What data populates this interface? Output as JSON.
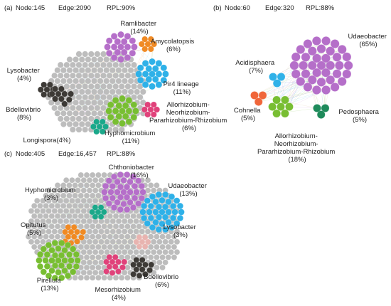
{
  "panels": [
    {
      "id": "a",
      "header": {
        "tag": "(a)",
        "node": "Node:145",
        "edge": "Edge:2090",
        "rpl": "RPL:90%"
      },
      "gray": "#bdbdbd",
      "modules": [
        {
          "name": "Ramlibacter",
          "pct": "(14%)",
          "color": "#b56fc9"
        },
        {
          "name": "Amycolatopsis",
          "pct": "(6%)",
          "color": "#f08a24"
        },
        {
          "name": "Pir4 lineage",
          "pct": "(11%)",
          "color": "#2fb1e8"
        },
        {
          "name": "Lysobacter",
          "pct": "(4%)",
          "color": "#3d3a36"
        },
        {
          "name": "Bdellovibrio",
          "pct": "(8%)",
          "color": "#3d3a36"
        },
        {
          "name": "Allorhizobium-\nNeorhizobium-\nPararhizobium-Rhizobium",
          "pct": "(6%)",
          "color": "#e0427a"
        },
        {
          "name": "Hyphomicrobium",
          "pct": "(11%)",
          "color": "#78be32"
        },
        {
          "name": "Longispora",
          "pct": "(4%)",
          "color": "#1ba88a"
        }
      ]
    },
    {
      "id": "b",
      "header": {
        "tag": "(b)",
        "node": "Node:60",
        "edge": "Edge:320",
        "rpl": "RPL:88%"
      },
      "modules": [
        {
          "name": "Udaeobacter",
          "pct": "(65%)",
          "color": "#b56fc9"
        },
        {
          "name": "Acidisphaera",
          "pct": "(7%)",
          "color": "#2fb1e8"
        },
        {
          "name": "Cohnella",
          "pct": "(5%)",
          "color": "#f0663a"
        },
        {
          "name": "Allorhizobium-\nNeorhizobium-\nPararhizobium-Rhizobium",
          "pct": "(18%)",
          "color": "#78be32"
        },
        {
          "name": "Pedosphaera",
          "pct": "(5%)",
          "color": "#1e8a5a"
        }
      ]
    },
    {
      "id": "c",
      "header": {
        "tag": "(c)",
        "node": "Node:405",
        "edge": "Edge:16,457",
        "rpl": "RPL:88%"
      },
      "gray": "#bdbdbd",
      "modules": [
        {
          "name": "Chthoniobacter",
          "pct": "(16%)",
          "color": "#b56fc9"
        },
        {
          "name": "Udaeobacter",
          "pct": "(13%)",
          "color": "#2fb1e8"
        },
        {
          "name": "Hyphomicrobium",
          "pct": "(3%)",
          "color": "#1ba88a"
        },
        {
          "name": "Opitutus",
          "pct": "(5%)",
          "color": "#f08a24"
        },
        {
          "name": "Lysobacter",
          "pct": "(3%)",
          "color": "#e8b4b0"
        },
        {
          "name": "Pirellula",
          "pct": "(13%)",
          "color": "#78be32"
        },
        {
          "name": "Bdellovibrio",
          "pct": "(6%)",
          "color": "#3d3a36"
        },
        {
          "name": "Mesorhizobium",
          "pct": "(4%)",
          "color": "#e0427a"
        }
      ]
    }
  ]
}
